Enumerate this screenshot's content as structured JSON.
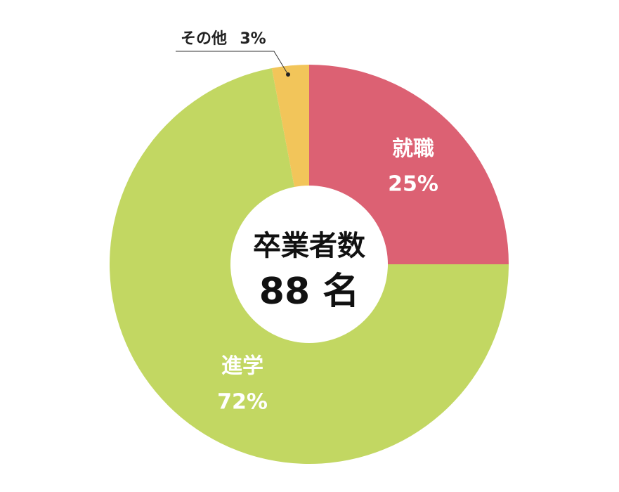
{
  "chart_data": {
    "type": "donut",
    "center_title": "卒業者数",
    "center_value": "88 名",
    "categories": [
      "就職",
      "進学",
      "その他"
    ],
    "values": [
      25,
      72,
      3
    ],
    "value_labels": [
      "25%",
      "72%",
      "3%"
    ],
    "colors": [
      "#dc6173",
      "#c2d762",
      "#f2c55a"
    ]
  }
}
